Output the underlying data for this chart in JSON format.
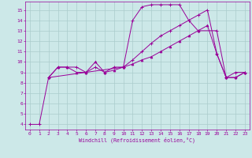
{
  "background_color": "#cce8e8",
  "grid_color": "#aacccc",
  "line_color": "#990099",
  "xlabel": "Windchill (Refroidissement éolien,°C)",
  "xlim": [
    -0.5,
    23.5
  ],
  "ylim": [
    3.5,
    15.8
  ],
  "yticks": [
    4,
    5,
    6,
    7,
    8,
    9,
    10,
    11,
    12,
    13,
    14,
    15
  ],
  "xticks": [
    0,
    1,
    2,
    3,
    4,
    5,
    6,
    7,
    8,
    9,
    10,
    11,
    12,
    13,
    14,
    15,
    16,
    17,
    18,
    19,
    20,
    21,
    22,
    23
  ],
  "line1_x": [
    0,
    1,
    2,
    10,
    11,
    12,
    13,
    14,
    15,
    16,
    17,
    18,
    20,
    21,
    22,
    23
  ],
  "line1_y": [
    4,
    4,
    8.5,
    9.5,
    14,
    15.3,
    15.5,
    15.5,
    15.5,
    15.5,
    14,
    13,
    13,
    8.5,
    9.0,
    9.0
  ],
  "line2_x": [
    2,
    3,
    4,
    5,
    6,
    7,
    8,
    9,
    10,
    11,
    12,
    13,
    14,
    15,
    16,
    17,
    18,
    19,
    20,
    21,
    22,
    23
  ],
  "line2_y": [
    8.5,
    9.5,
    9.5,
    9.5,
    9.0,
    9.5,
    9.0,
    9.5,
    9.5,
    10.2,
    11.0,
    11.8,
    12.5,
    13.0,
    13.5,
    14.0,
    14.5,
    15.0,
    10.8,
    8.5,
    8.5,
    9.0
  ],
  "line3_x": [
    2,
    3,
    4,
    5,
    6,
    7,
    8,
    9,
    10,
    11,
    12,
    13,
    14,
    15,
    16,
    17,
    18,
    19,
    20,
    21,
    22,
    23
  ],
  "line3_y": [
    8.5,
    9.5,
    9.5,
    9.0,
    9.0,
    10.0,
    9.0,
    9.2,
    9.5,
    9.8,
    10.2,
    10.5,
    11.0,
    11.5,
    12.0,
    12.5,
    13.0,
    13.5,
    10.8,
    8.5,
    8.5,
    9.0
  ]
}
